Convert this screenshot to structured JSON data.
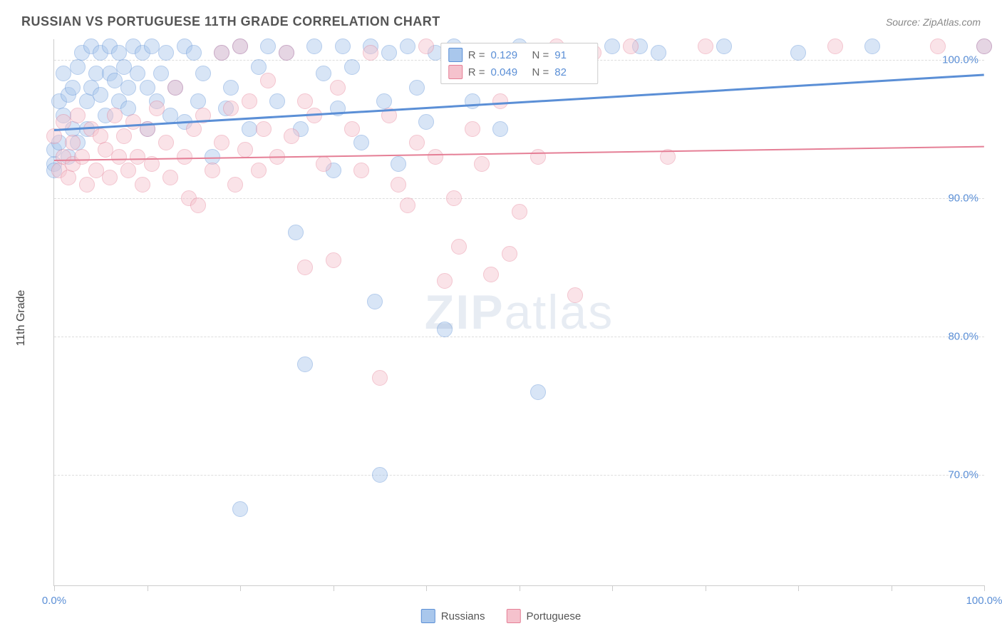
{
  "title": "RUSSIAN VS PORTUGUESE 11TH GRADE CORRELATION CHART",
  "source": "Source: ZipAtlas.com",
  "watermark_bold": "ZIP",
  "watermark_rest": "atlas",
  "chart": {
    "type": "scatter",
    "background_color": "#ffffff",
    "grid_color": "#dddddd",
    "border_color": "#cccccc",
    "axis_text_color": "#5b8fd6",
    "label_text_color": "#444444",
    "ylabel": "11th Grade",
    "label_fontsize": 16,
    "tick_fontsize": 15,
    "xlim": [
      0,
      100
    ],
    "ylim": [
      62,
      101.5
    ],
    "xtick_positions": [
      0,
      10,
      20,
      30,
      40,
      50,
      60,
      70,
      80,
      90,
      100
    ],
    "xtick_labels": {
      "0": "0.0%",
      "100": "100.0%"
    },
    "ytick_positions": [
      70,
      80,
      90,
      100
    ],
    "ytick_labels": {
      "70": "70.0%",
      "80": "80.0%",
      "90": "90.0%",
      "100": "100.0%"
    },
    "point_radius": 11,
    "point_opacity": 0.45,
    "series": [
      {
        "name": "Russians",
        "color_fill": "#a9c7ec",
        "color_stroke": "#5b8fd6",
        "r_value": "0.129",
        "n_value": "91",
        "trend": {
          "y_at_0": 95.0,
          "y_at_100": 99.0,
          "width": 2.5
        },
        "points": [
          [
            0,
            92.5
          ],
          [
            0,
            93.5
          ],
          [
            0.5,
            94
          ],
          [
            0.5,
            97
          ],
          [
            1,
            99
          ],
          [
            1,
            96
          ],
          [
            1.5,
            93
          ],
          [
            1.5,
            97.5
          ],
          [
            2,
            98
          ],
          [
            2,
            95
          ],
          [
            2.5,
            99.5
          ],
          [
            2.5,
            94
          ],
          [
            3,
            100.5
          ],
          [
            3.5,
            97
          ],
          [
            3.5,
            95
          ],
          [
            4,
            101
          ],
          [
            4,
            98
          ],
          [
            4.5,
            99
          ],
          [
            5,
            97.5
          ],
          [
            5,
            100.5
          ],
          [
            5.5,
            96
          ],
          [
            6,
            99
          ],
          [
            6,
            101
          ],
          [
            6.5,
            98.5
          ],
          [
            7,
            97
          ],
          [
            7,
            100.5
          ],
          [
            7.5,
            99.5
          ],
          [
            8,
            98
          ],
          [
            8,
            96.5
          ],
          [
            8.5,
            101
          ],
          [
            9,
            99
          ],
          [
            9.5,
            100.5
          ],
          [
            10,
            98
          ],
          [
            10,
            95
          ],
          [
            10.5,
            101
          ],
          [
            11,
            97
          ],
          [
            11.5,
            99
          ],
          [
            12,
            100.5
          ],
          [
            12.5,
            96
          ],
          [
            13,
            98
          ],
          [
            14,
            101
          ],
          [
            14,
            95.5
          ],
          [
            15,
            100.5
          ],
          [
            15.5,
            97
          ],
          [
            16,
            99
          ],
          [
            17,
            93
          ],
          [
            18,
            100.5
          ],
          [
            18.5,
            96.5
          ],
          [
            19,
            98
          ],
          [
            20,
            67.5
          ],
          [
            20,
            101
          ],
          [
            21,
            95
          ],
          [
            22,
            99.5
          ],
          [
            23,
            101
          ],
          [
            24,
            97
          ],
          [
            25,
            100.5
          ],
          [
            26,
            87.5
          ],
          [
            26.5,
            95
          ],
          [
            27,
            78
          ],
          [
            28,
            101
          ],
          [
            29,
            99
          ],
          [
            30,
            92
          ],
          [
            30.5,
            96.5
          ],
          [
            31,
            101
          ],
          [
            32,
            99.5
          ],
          [
            33,
            94
          ],
          [
            34,
            101
          ],
          [
            34.5,
            82.5
          ],
          [
            35,
            70
          ],
          [
            35.5,
            97
          ],
          [
            36,
            100.5
          ],
          [
            37,
            92.5
          ],
          [
            38,
            101
          ],
          [
            39,
            98
          ],
          [
            40,
            95.5
          ],
          [
            41,
            100.5
          ],
          [
            42,
            80.5
          ],
          [
            43,
            101
          ],
          [
            45,
            97
          ],
          [
            47,
            100.5
          ],
          [
            48,
            95
          ],
          [
            50,
            101
          ],
          [
            52,
            76
          ],
          [
            54,
            100.5
          ],
          [
            60,
            101
          ],
          [
            63,
            101
          ],
          [
            65,
            100.5
          ],
          [
            72,
            101
          ],
          [
            80,
            100.5
          ],
          [
            88,
            101
          ],
          [
            100,
            101
          ],
          [
            0,
            92
          ]
        ]
      },
      {
        "name": "Portuguese",
        "color_fill": "#f5c2cd",
        "color_stroke": "#e57f96",
        "r_value": "0.049",
        "n_value": "82",
        "trend": {
          "y_at_0": 92.8,
          "y_at_100": 93.8,
          "width": 2
        },
        "points": [
          [
            0,
            94.5
          ],
          [
            0.5,
            92
          ],
          [
            1,
            93
          ],
          [
            1,
            95.5
          ],
          [
            1.5,
            91.5
          ],
          [
            2,
            94
          ],
          [
            2,
            92.5
          ],
          [
            2.5,
            96
          ],
          [
            3,
            93
          ],
          [
            3.5,
            91
          ],
          [
            4,
            95
          ],
          [
            4.5,
            92
          ],
          [
            5,
            94.5
          ],
          [
            5.5,
            93.5
          ],
          [
            6,
            91.5
          ],
          [
            6.5,
            96
          ],
          [
            7,
            93
          ],
          [
            7.5,
            94.5
          ],
          [
            8,
            92
          ],
          [
            8.5,
            95.5
          ],
          [
            9,
            93
          ],
          [
            9.5,
            91
          ],
          [
            10,
            95
          ],
          [
            10.5,
            92.5
          ],
          [
            11,
            96.5
          ],
          [
            12,
            94
          ],
          [
            12.5,
            91.5
          ],
          [
            13,
            98
          ],
          [
            14,
            93
          ],
          [
            14.5,
            90
          ],
          [
            15,
            95
          ],
          [
            15.5,
            89.5
          ],
          [
            16,
            96
          ],
          [
            17,
            92
          ],
          [
            18,
            100.5
          ],
          [
            18,
            94
          ],
          [
            19,
            96.5
          ],
          [
            19.5,
            91
          ],
          [
            20,
            101
          ],
          [
            20.5,
            93.5
          ],
          [
            21,
            97
          ],
          [
            22,
            92
          ],
          [
            22.5,
            95
          ],
          [
            23,
            98.5
          ],
          [
            24,
            93
          ],
          [
            25,
            100.5
          ],
          [
            25.5,
            94.5
          ],
          [
            27,
            85
          ],
          [
            27,
            97
          ],
          [
            28,
            96
          ],
          [
            29,
            92.5
          ],
          [
            30,
            85.5
          ],
          [
            30.5,
            98
          ],
          [
            32,
            95
          ],
          [
            33,
            92
          ],
          [
            34,
            100.5
          ],
          [
            35,
            77
          ],
          [
            36,
            96
          ],
          [
            37,
            91
          ],
          [
            38,
            89.5
          ],
          [
            39,
            94
          ],
          [
            40,
            101
          ],
          [
            41,
            93
          ],
          [
            42,
            84
          ],
          [
            43,
            90
          ],
          [
            43.5,
            86.5
          ],
          [
            45,
            95
          ],
          [
            46,
            92.5
          ],
          [
            47,
            84.5
          ],
          [
            48,
            97
          ],
          [
            49,
            86
          ],
          [
            50,
            89
          ],
          [
            52,
            93
          ],
          [
            54,
            101
          ],
          [
            56,
            83
          ],
          [
            58,
            100.5
          ],
          [
            62,
            101
          ],
          [
            66,
            93
          ],
          [
            70,
            101
          ],
          [
            84,
            101
          ],
          [
            95,
            101
          ],
          [
            100,
            101
          ]
        ]
      }
    ]
  },
  "legend_top": {
    "r_label": "R =",
    "n_label": "N ="
  },
  "legend_bottom": {
    "items": [
      "Russians",
      "Portuguese"
    ]
  }
}
